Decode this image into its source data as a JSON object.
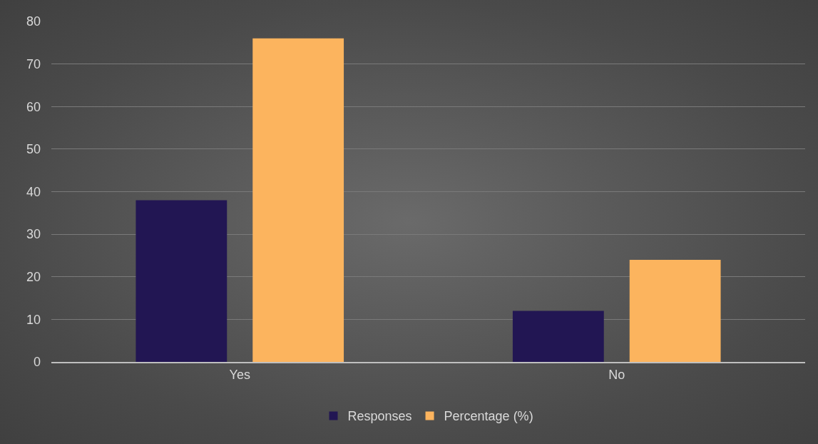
{
  "chart_data": {
    "type": "bar",
    "categories": [
      "Yes",
      "No"
    ],
    "series": [
      {
        "name": "Responses",
        "color": "#221653",
        "values": [
          38,
          12
        ]
      },
      {
        "name": "Percentage (%)",
        "color": "#fcb45e",
        "values": [
          76,
          24
        ]
      }
    ],
    "ylim": [
      0,
      80
    ],
    "yticks": [
      0,
      10,
      20,
      30,
      40,
      50,
      60,
      70,
      80
    ],
    "grid": "y",
    "legend": "bottom"
  }
}
